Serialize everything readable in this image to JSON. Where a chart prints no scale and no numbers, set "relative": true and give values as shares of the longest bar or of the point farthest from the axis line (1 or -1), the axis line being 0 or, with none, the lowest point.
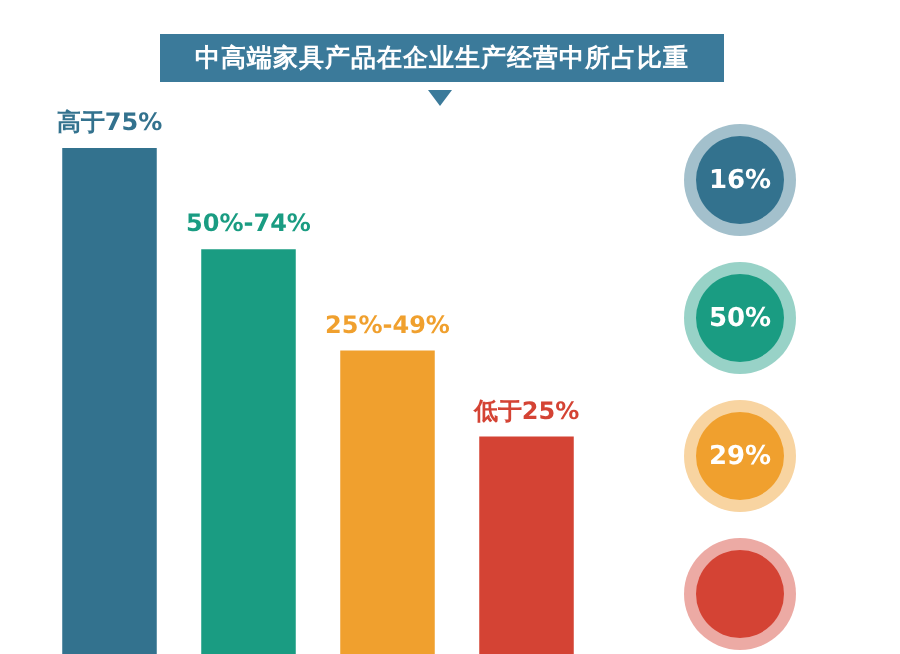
{
  "chart_data": {
    "type": "bar",
    "title": "中高端家具产品在企业生产经营中所占比重",
    "categories": [
      "高于75%",
      "50%-74%",
      "25%-49%",
      "低于25%"
    ],
    "values": [
      1,
      0.8,
      0.6,
      0.43
    ],
    "colors": [
      "#33728e",
      "#1a9c82",
      "#f0a02e",
      "#d44334"
    ],
    "relative": true,
    "annotations": [
      "16%",
      "50%",
      "29%"
    ]
  }
}
